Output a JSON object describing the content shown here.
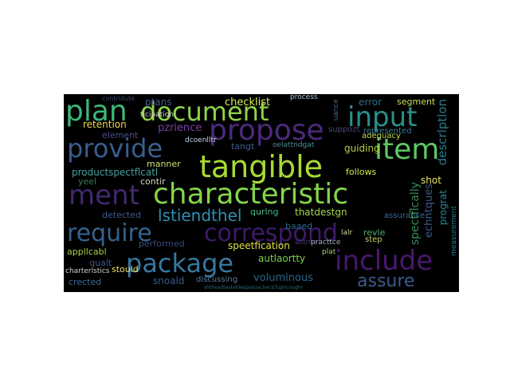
{
  "words": [
    {
      "text": "plan",
      "color": "#3cb778"
    },
    {
      "text": "document",
      "color": "#8fd44a"
    },
    {
      "text": "input",
      "color": "#2a8f8a"
    },
    {
      "text": "propose",
      "color": "#4b2a7a"
    },
    {
      "text": "provide",
      "color": "#3a5d8f"
    },
    {
      "text": "item",
      "color": "#5ec962"
    },
    {
      "text": "tangible",
      "color": "#a8db34"
    },
    {
      "text": "characteristic",
      "color": "#84d44b"
    },
    {
      "text": "ment",
      "color": "#43286e"
    },
    {
      "text": "require",
      "color": "#33628d"
    },
    {
      "text": "correspond",
      "color": "#3e1a6a"
    },
    {
      "text": "include",
      "color": "#4a176e"
    },
    {
      "text": "package",
      "color": "#3579a0"
    },
    {
      "text": "lstiendthel",
      "color": "#2e8fb5"
    },
    {
      "text": "assure",
      "color": "#3b5a8c"
    },
    {
      "text": "checklist",
      "color": "#d6e85a"
    },
    {
      "text": "error",
      "color": "#2c6e8e"
    },
    {
      "text": "segment",
      "color": "#c8e05a"
    },
    {
      "text": "ptans",
      "color": "#3d5a8a"
    },
    {
      "text": "retention",
      "color": "#f0d84a"
    },
    {
      "text": "element",
      "color": "#4a4f8a"
    },
    {
      "text": "pzrience",
      "color": "#7a3fa0"
    },
    {
      "text": "tangt",
      "color": "#3a5a8a"
    },
    {
      "text": "oelattndgat",
      "color": "#4f8f8f"
    },
    {
      "text": "adequacy",
      "color": "#c0d84a"
    },
    {
      "text": "descrlptlon",
      "color": "#2a7a8a"
    },
    {
      "text": "manner",
      "color": "#d0e070"
    },
    {
      "text": "dcoenlltr",
      "color": "#c8d8e8"
    },
    {
      "text": "productspectflcatl",
      "color": "#48a0a0"
    },
    {
      "text": "guiding",
      "color": "#b8d040"
    },
    {
      "text": "follows",
      "color": "#d8e84a"
    },
    {
      "text": "spectflcally",
      "color": "#3a8a5a"
    },
    {
      "text": "echntques",
      "color": "#3a5a8a"
    },
    {
      "text": "yeel",
      "color": "#3a7a5a"
    },
    {
      "text": "contir",
      "color": "#d0d8c0"
    },
    {
      "text": "shot",
      "color": "#e8e860"
    },
    {
      "text": "detected",
      "color": "#3a5a8a"
    },
    {
      "text": "qurlng",
      "color": "#4ab888"
    },
    {
      "text": "thatdestgn",
      "color": "#a8d84a"
    },
    {
      "text": "prograt",
      "color": "#2a8aa0"
    },
    {
      "text": "assurance",
      "color": "#3a6a9a"
    },
    {
      "text": "baaed",
      "color": "#2a6a8a"
    },
    {
      "text": "revle",
      "color": "#48b070"
    },
    {
      "text": "appllcabl",
      "color": "#a8d040"
    },
    {
      "text": "performed",
      "color": "#3a4a7a"
    },
    {
      "text": "speetfication",
      "color": "#e0e040"
    },
    {
      "text": "autlaortty",
      "color": "#7ad050"
    },
    {
      "text": "qualt",
      "color": "#3a5a8a"
    },
    {
      "text": "stould",
      "color": "#f0e060"
    },
    {
      "text": "voluminous",
      "color": "#2a6a8a"
    },
    {
      "text": "astnre",
      "color": "#4a3a7a"
    },
    {
      "text": "charterlstics",
      "color": "#d0d0d0"
    },
    {
      "text": "crected",
      "color": "#3a6a9a"
    },
    {
      "text": "snoald",
      "color": "#3a5a8a"
    },
    {
      "text": "discussing",
      "color": "#5a7a9a"
    },
    {
      "text": "step",
      "color": "#c0d060"
    },
    {
      "text": "lalr",
      "color": "#d0d8a0"
    },
    {
      "text": "practtce",
      "color": "#a0b0c0"
    },
    {
      "text": "represented",
      "color": "#3a7a9a"
    },
    {
      "text": "suppozt",
      "color": "#4a4a7a"
    },
    {
      "text": "uance",
      "color": "#4a6a8a"
    },
    {
      "text": "process",
      "color": "#b0c0d0"
    },
    {
      "text": "tlcipation",
      "color": "#d0d8d0"
    },
    {
      "text": "contridute",
      "color": "#3a4a6a"
    },
    {
      "text": "plat",
      "color": "#b0d070"
    },
    {
      "text": "measurement",
      "color": "#2a7a8a"
    },
    {
      "text": "shtheadtevtehlesposuacheclcfupircoughr",
      "color": "#2a6a7a"
    }
  ]
}
